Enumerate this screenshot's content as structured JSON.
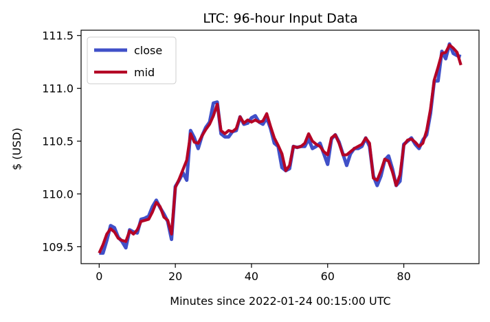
{
  "colors": {
    "close": "#4050c8",
    "mid": "#b40426",
    "axis": "#000000",
    "background": "#ffffff"
  },
  "chart_data": {
    "type": "line",
    "title": "LTC: 96-hour Input Data",
    "xlabel": "Minutes since 2022-01-24 00:15:00 UTC",
    "ylabel": "$ (USD)",
    "xlim": [
      -4.75,
      99.75
    ],
    "ylim": [
      109.34,
      111.55
    ],
    "x_ticks": [
      0,
      20,
      40,
      60,
      80
    ],
    "x_tick_labels": [
      "0",
      "20",
      "40",
      "60",
      "80"
    ],
    "y_ticks": [
      109.5,
      110.0,
      110.5,
      111.0,
      111.5
    ],
    "y_tick_labels": [
      "109.5",
      "110.0",
      "110.5",
      "111.0",
      "111.5"
    ],
    "grid": false,
    "legend": {
      "position": "upper-left",
      "entries": [
        "close",
        "mid"
      ]
    },
    "x": [
      0,
      1,
      2,
      3,
      4,
      5,
      6,
      7,
      8,
      9,
      10,
      11,
      12,
      13,
      14,
      15,
      16,
      17,
      18,
      19,
      20,
      21,
      22,
      23,
      24,
      25,
      26,
      27,
      28,
      29,
      30,
      31,
      32,
      33,
      34,
      35,
      36,
      37,
      38,
      39,
      40,
      41,
      42,
      43,
      44,
      45,
      46,
      47,
      48,
      49,
      50,
      51,
      52,
      53,
      54,
      55,
      56,
      57,
      58,
      59,
      60,
      61,
      62,
      63,
      64,
      65,
      66,
      67,
      68,
      69,
      70,
      71,
      72,
      73,
      74,
      75,
      76,
      77,
      78,
      79,
      80,
      81,
      82,
      83,
      84,
      85,
      86,
      87,
      88,
      89,
      90,
      91,
      92,
      93,
      94,
      95
    ],
    "series": [
      {
        "name": "close",
        "values": [
          109.44,
          109.44,
          109.56,
          109.7,
          109.68,
          109.59,
          109.55,
          109.49,
          109.66,
          109.64,
          109.63,
          109.76,
          109.77,
          109.79,
          109.88,
          109.94,
          109.87,
          109.81,
          109.74,
          109.57,
          110.07,
          110.13,
          110.2,
          110.13,
          110.6,
          110.53,
          110.43,
          110.55,
          110.63,
          110.68,
          110.86,
          110.87,
          110.57,
          110.54,
          110.54,
          110.59,
          110.6,
          110.73,
          110.66,
          110.67,
          110.72,
          110.74,
          110.68,
          110.66,
          110.72,
          110.62,
          110.48,
          110.45,
          110.25,
          110.22,
          110.24,
          110.45,
          110.44,
          110.45,
          110.45,
          110.52,
          110.43,
          110.45,
          110.48,
          110.38,
          110.28,
          110.52,
          110.56,
          110.49,
          110.38,
          110.27,
          110.38,
          110.43,
          110.43,
          110.45,
          110.53,
          110.45,
          110.17,
          110.08,
          110.17,
          110.32,
          110.36,
          110.24,
          110.08,
          110.12,
          110.47,
          110.5,
          110.53,
          110.47,
          110.43,
          110.51,
          110.56,
          110.76,
          111.07,
          111.07,
          111.35,
          111.28,
          111.42,
          111.33,
          111.31,
          111.3
        ]
      },
      {
        "name": "mid",
        "values": [
          109.44,
          109.52,
          109.62,
          109.67,
          109.64,
          109.58,
          109.56,
          109.55,
          109.65,
          109.62,
          109.66,
          109.74,
          109.75,
          109.76,
          109.83,
          109.92,
          109.88,
          109.78,
          109.75,
          109.62,
          110.06,
          110.14,
          110.23,
          110.32,
          110.57,
          110.49,
          110.48,
          110.55,
          110.61,
          110.66,
          110.74,
          110.85,
          110.6,
          110.57,
          110.6,
          110.59,
          110.62,
          110.73,
          110.67,
          110.7,
          110.68,
          110.7,
          110.68,
          110.69,
          110.76,
          110.64,
          110.53,
          110.46,
          110.38,
          110.22,
          110.27,
          110.45,
          110.44,
          110.45,
          110.48,
          110.57,
          110.5,
          110.47,
          110.45,
          110.4,
          110.37,
          110.53,
          110.56,
          110.48,
          110.37,
          110.37,
          110.4,
          110.43,
          110.45,
          110.47,
          110.53,
          110.48,
          110.15,
          110.13,
          110.22,
          110.33,
          110.31,
          110.21,
          110.08,
          110.18,
          110.46,
          110.51,
          110.52,
          110.49,
          110.45,
          110.48,
          110.6,
          110.8,
          111.08,
          111.2,
          111.33,
          111.34,
          111.41,
          111.38,
          111.34,
          111.22
        ]
      }
    ]
  }
}
